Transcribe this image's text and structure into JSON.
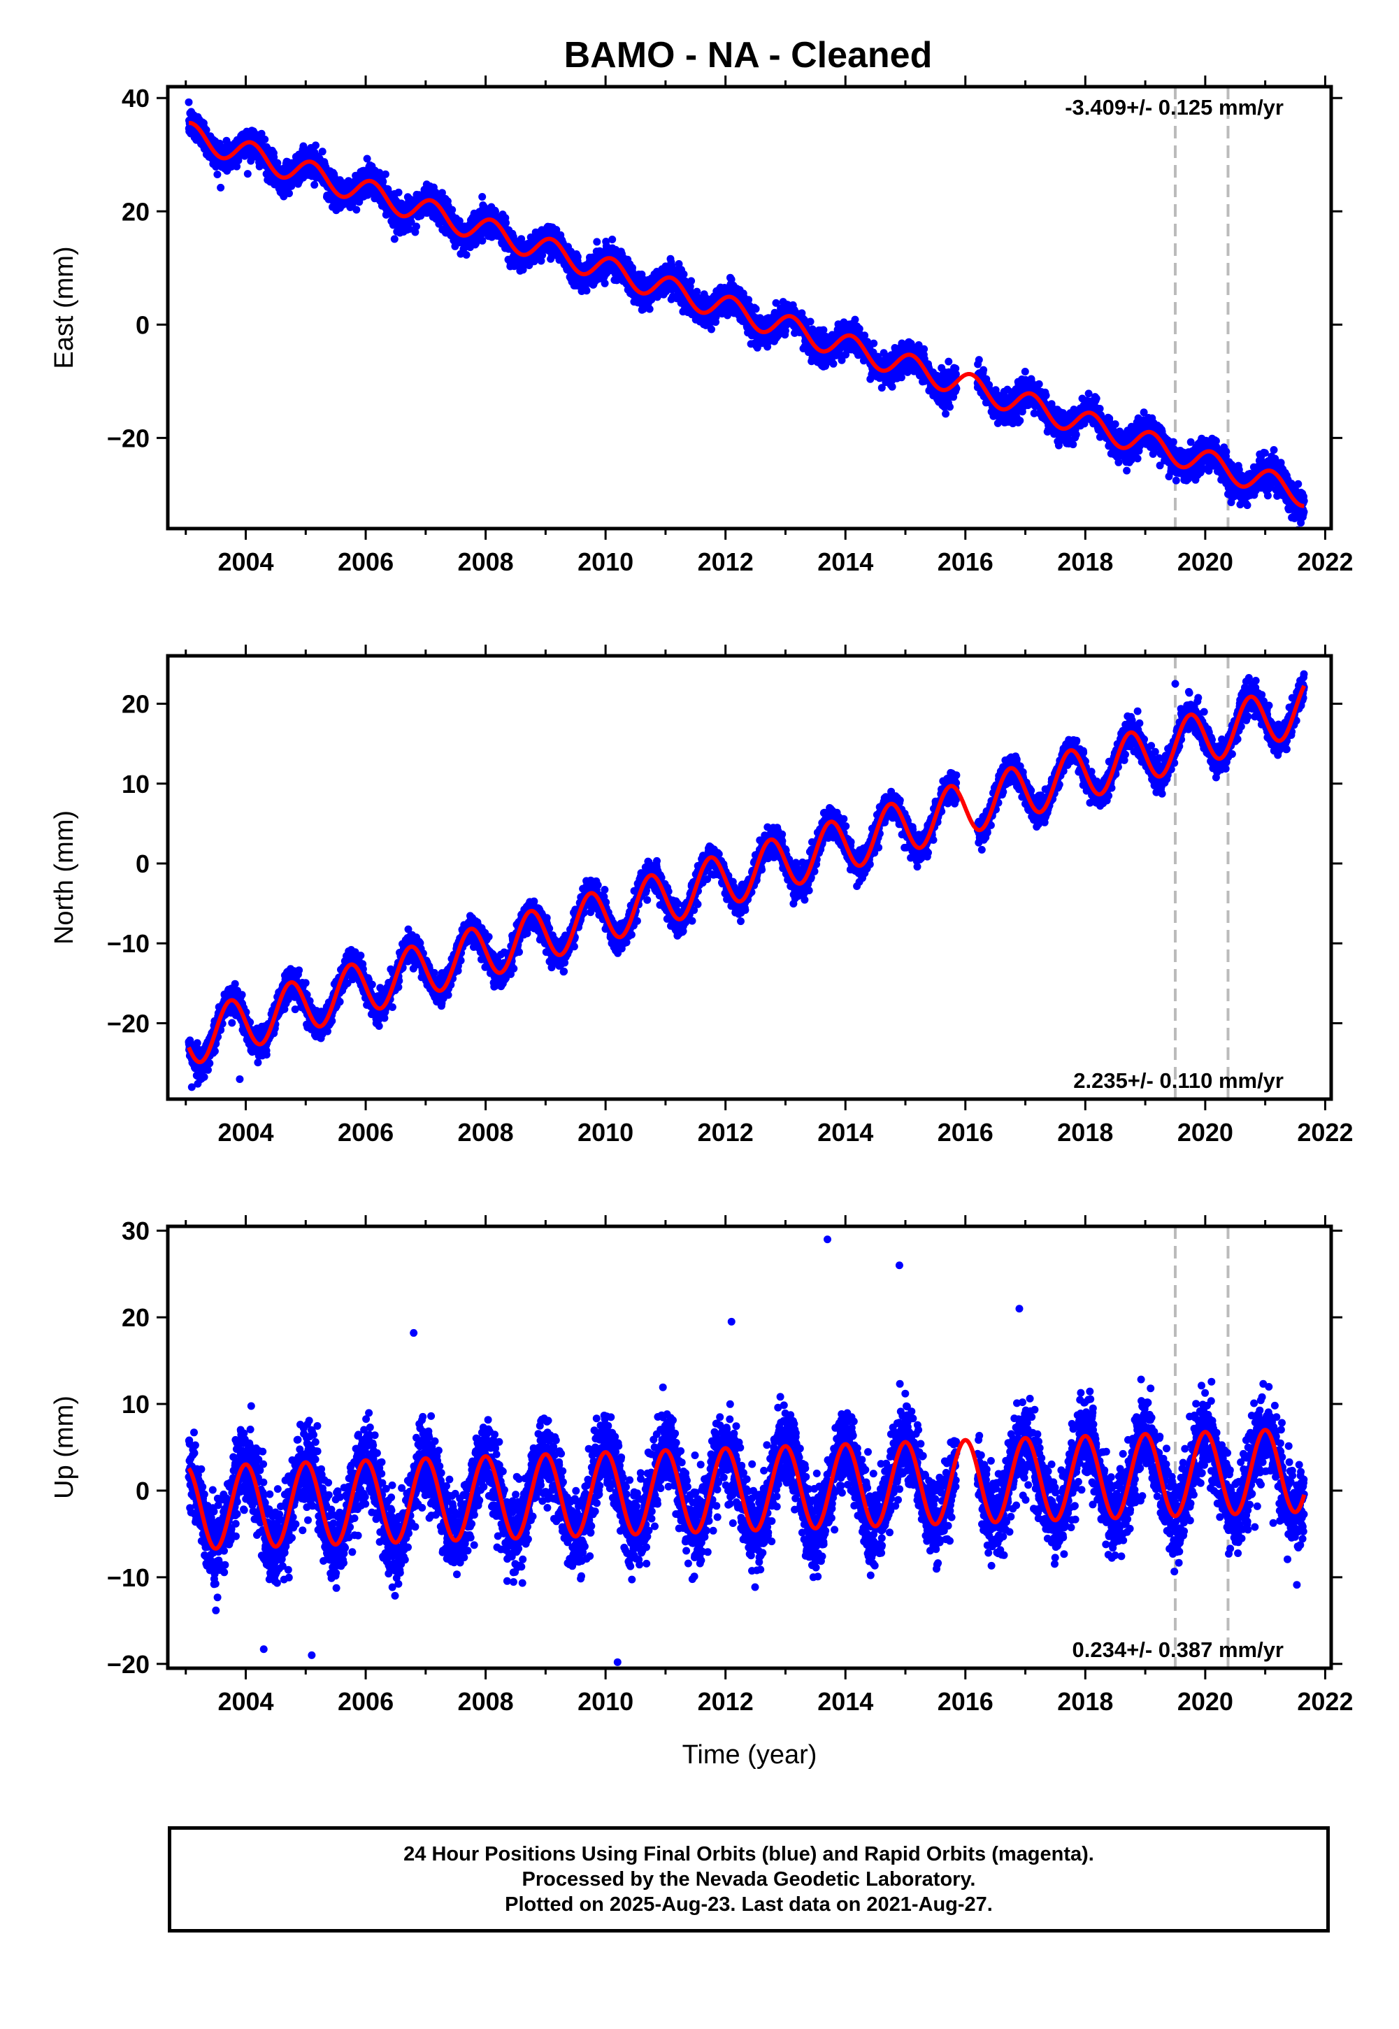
{
  "title": "BAMO  - NA - Cleaned",
  "footer": {
    "line1": "24 Hour Positions Using Final Orbits (blue) and Rapid Orbits (magenta).",
    "line2": "Processed by the Nevada Geodetic Laboratory.",
    "line3": "Plotted on 2025-Aug-23. Last data on 2021-Aug-27."
  },
  "colors": {
    "points": "#0000ff",
    "fit": "#ff0000",
    "marker": "#bbbbbb",
    "frame": "#000000"
  },
  "chart_data": [
    {
      "type": "scatter",
      "ylabel": "East (mm)",
      "xlabel": "",
      "rate_label": "-3.409+/- 0.125 mm/yr",
      "rate_position": "top-right",
      "xlim": [
        2002.7,
        2022.1
      ],
      "ylim": [
        -36,
        42
      ],
      "xticks": [
        2004,
        2006,
        2008,
        2010,
        2012,
        2014,
        2016,
        2018,
        2020,
        2022
      ],
      "yticks": [
        -20,
        0,
        20,
        40
      ],
      "marker_epochs": [
        2019.5,
        2020.38
      ],
      "series": [
        {
          "kind": "points",
          "x_start": 2003.05,
          "x_end": 2021.65,
          "gap": [
            2015.85,
            2016.2
          ],
          "y_at_start": 33.5,
          "slope": -3.409,
          "amplitude": 2.2,
          "phase": 0.2,
          "scatter": 2.4,
          "outliers": []
        },
        {
          "kind": "fit",
          "x_start": 2003.05,
          "x_end": 2021.65,
          "y_at_start": 33.5,
          "slope": -3.409,
          "amplitude": 2.2,
          "phase": 0.2
        }
      ]
    },
    {
      "type": "scatter",
      "ylabel": "North (mm)",
      "xlabel": "",
      "rate_label": "2.235+/- 0.110 mm/yr",
      "rate_position": "bottom-right",
      "xlim": [
        2002.7,
        2022.1
      ],
      "ylim": [
        -29.5,
        26
      ],
      "xticks": [
        2004,
        2006,
        2008,
        2010,
        2012,
        2014,
        2016,
        2018,
        2020,
        2022
      ],
      "yticks": [
        -20,
        -10,
        0,
        10,
        20
      ],
      "marker_epochs": [
        2019.5,
        2020.38
      ],
      "series": [
        {
          "kind": "points",
          "x_start": 2003.05,
          "x_end": 2021.65,
          "gap": [
            2015.85,
            2016.2
          ],
          "y_at_start": -22,
          "slope": 2.235,
          "amplitude": 3.3,
          "phase": 0.55,
          "scatter": 1.6,
          "outliers": [
            [
              2003.1,
              -28
            ],
            [
              2003.9,
              -27
            ],
            [
              2019.5,
              22.5
            ]
          ]
        },
        {
          "kind": "fit",
          "x_start": 2003.05,
          "x_end": 2021.65,
          "y_at_start": -22,
          "slope": 2.235,
          "amplitude": 3.3,
          "phase": 0.55
        }
      ]
    },
    {
      "type": "scatter",
      "ylabel": "Up (mm)",
      "xlabel": "Time (year)",
      "rate_label": "0.234+/- 0.387 mm/yr",
      "rate_position": "bottom-right",
      "xlim": [
        2002.7,
        2022.1
      ],
      "ylim": [
        -20.5,
        30.5
      ],
      "xticks": [
        2004,
        2006,
        2008,
        2010,
        2012,
        2014,
        2016,
        2018,
        2020,
        2022
      ],
      "yticks": [
        -20,
        -10,
        0,
        10,
        20,
        30
      ],
      "marker_epochs": [
        2019.5,
        2020.38
      ],
      "series": [
        {
          "kind": "points",
          "x_start": 2003.05,
          "x_end": 2021.65,
          "gap": [
            2015.85,
            2016.2
          ],
          "y_at_start": -2,
          "slope": 0.234,
          "amplitude": 4.8,
          "phase": 0.3,
          "scatter": 4.2,
          "outliers": [
            [
              2013.7,
              29
            ],
            [
              2014.9,
              26
            ],
            [
              2012.1,
              19.5
            ],
            [
              2016.9,
              21
            ],
            [
              2006.8,
              18.2
            ],
            [
              2005.1,
              -19
            ],
            [
              2010.2,
              -19.8
            ],
            [
              2004.3,
              -18.3
            ]
          ]
        },
        {
          "kind": "fit",
          "x_start": 2003.05,
          "x_end": 2021.65,
          "y_at_start": -2,
          "slope": 0.234,
          "amplitude": 4.8,
          "phase": 0.3
        }
      ]
    }
  ]
}
